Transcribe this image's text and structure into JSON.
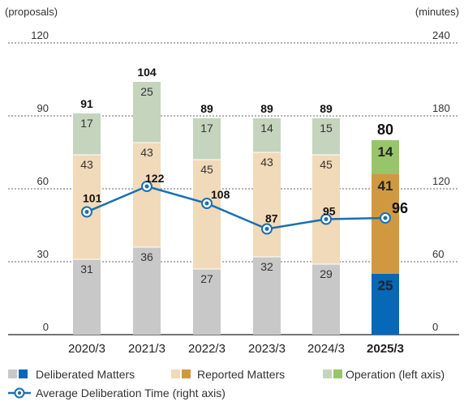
{
  "chart_data": {
    "type": "bar",
    "stacked": true,
    "left_axis": {
      "unit": "(proposals)",
      "ticks": [
        0,
        30,
        60,
        90,
        120
      ],
      "ylim": [
        0,
        120
      ]
    },
    "right_axis": {
      "unit": "(minutes)",
      "ticks": [
        0,
        60,
        120,
        180,
        240
      ],
      "ylim": [
        0,
        240
      ]
    },
    "categories": [
      "2020/3",
      "2021/3",
      "2022/3",
      "2023/3",
      "2024/3",
      "2025/3"
    ],
    "highlight_index": 5,
    "series": [
      {
        "name": "Deliberated Matters",
        "axis": "left",
        "values": [
          31,
          36,
          27,
          32,
          29,
          25
        ],
        "color": "#c8c8c8",
        "highlight_color": "#0868b8"
      },
      {
        "name": "Reported Matters",
        "axis": "left",
        "values": [
          43,
          43,
          45,
          43,
          45,
          41
        ],
        "color": "#f1dab9",
        "highlight_color": "#d1993f"
      },
      {
        "name": "Operation (left axis)",
        "axis": "left",
        "values": [
          17,
          25,
          17,
          14,
          15,
          14
        ],
        "color": "#c5d4bd",
        "highlight_color": "#99c56a"
      }
    ],
    "totals": [
      91,
      104,
      89,
      89,
      89,
      80
    ],
    "line_series": {
      "name": "Average Deliberation Time (right axis)",
      "axis": "right",
      "values": [
        101,
        122,
        108,
        87,
        95,
        96
      ],
      "color": "#1a6fb2"
    },
    "legend": {
      "placement": "bottom"
    },
    "grid": "dotted-horizontal"
  }
}
